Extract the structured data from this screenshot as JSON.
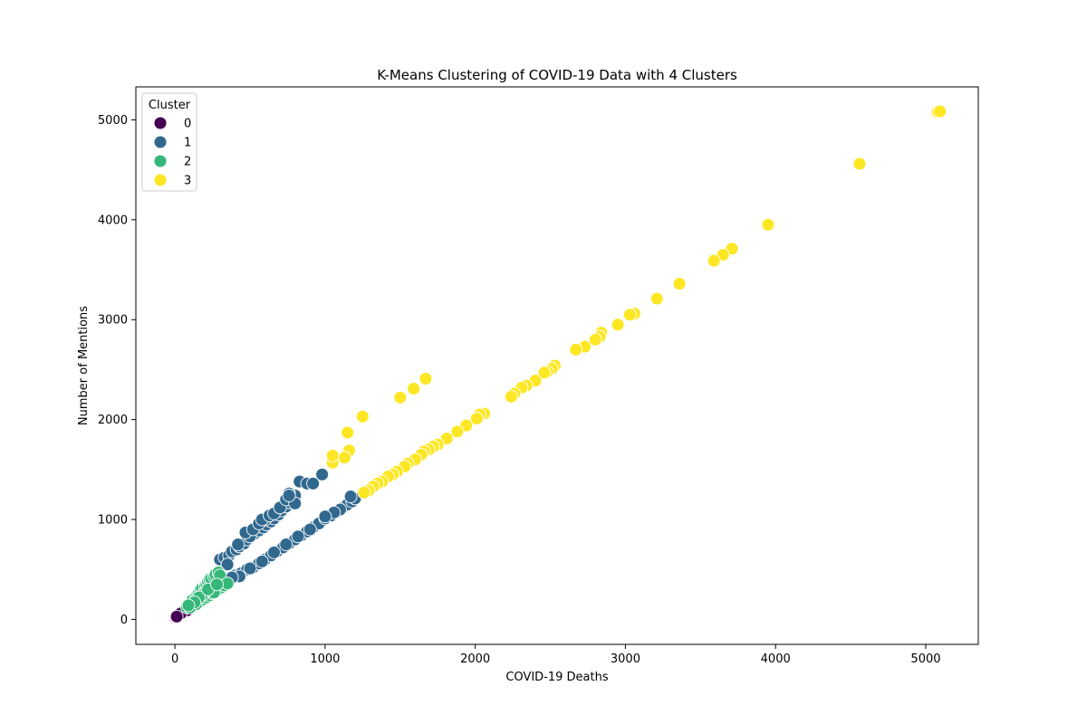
{
  "chart_data": {
    "type": "scatter",
    "title": "K-Means Clustering of COVID-19 Data with 4 Clusters",
    "xlabel": "COVID-19 Deaths",
    "ylabel": "Number of Mentions",
    "xlim": [
      -260,
      5350
    ],
    "ylim": [
      -250,
      5330
    ],
    "xticks": [
      0,
      1000,
      2000,
      3000,
      4000,
      5000
    ],
    "yticks": [
      0,
      1000,
      2000,
      3000,
      4000,
      5000
    ],
    "grid": false,
    "legend": {
      "title": "Cluster",
      "placement": "top-left"
    },
    "marker_edge_color": "#ffffff",
    "series": [
      {
        "name": "0",
        "color": "#440154",
        "points": [
          [
            0,
            10
          ],
          [
            5,
            15
          ],
          [
            10,
            20
          ],
          [
            15,
            25
          ],
          [
            20,
            30
          ],
          [
            25,
            35
          ],
          [
            30,
            40
          ],
          [
            35,
            45
          ],
          [
            40,
            50
          ],
          [
            45,
            55
          ],
          [
            50,
            60
          ],
          [
            55,
            65
          ],
          [
            60,
            70
          ],
          [
            65,
            75
          ],
          [
            70,
            80
          ],
          [
            75,
            85
          ],
          [
            80,
            90
          ],
          [
            20,
            40
          ],
          [
            30,
            55
          ],
          [
            40,
            60
          ],
          [
            12,
            28
          ]
        ]
      },
      {
        "name": "1",
        "color": "#31688e",
        "points": [
          [
            300,
            600
          ],
          [
            330,
            620
          ],
          [
            360,
            640
          ],
          [
            380,
            680
          ],
          [
            410,
            700
          ],
          [
            430,
            730
          ],
          [
            460,
            760
          ],
          [
            480,
            800
          ],
          [
            510,
            840
          ],
          [
            530,
            860
          ],
          [
            560,
            890
          ],
          [
            590,
            920
          ],
          [
            610,
            950
          ],
          [
            640,
            980
          ],
          [
            660,
            1010
          ],
          [
            690,
            1050
          ],
          [
            710,
            1090
          ],
          [
            740,
            1130
          ],
          [
            760,
            1170
          ],
          [
            780,
            1210
          ],
          [
            800,
            1240
          ],
          [
            760,
            1260
          ],
          [
            830,
            1380
          ],
          [
            880,
            1360
          ],
          [
            920,
            1360
          ],
          [
            980,
            1450
          ],
          [
            600,
            1000
          ],
          [
            500,
            830
          ],
          [
            470,
            870
          ],
          [
            420,
            750
          ],
          [
            350,
            550
          ],
          [
            520,
            900
          ],
          [
            560,
            960
          ],
          [
            580,
            1000
          ],
          [
            630,
            1040
          ],
          [
            660,
            1060
          ],
          [
            700,
            1120
          ],
          [
            740,
            1200
          ],
          [
            800,
            1160
          ],
          [
            760,
            1240
          ],
          [
            360,
            410
          ],
          [
            400,
            440
          ],
          [
            440,
            460
          ],
          [
            480,
            500
          ],
          [
            520,
            520
          ],
          [
            560,
            560
          ],
          [
            600,
            600
          ],
          [
            640,
            640
          ],
          [
            680,
            680
          ],
          [
            720,
            720
          ],
          [
            760,
            760
          ],
          [
            800,
            800
          ],
          [
            840,
            840
          ],
          [
            880,
            880
          ],
          [
            920,
            920
          ],
          [
            960,
            960
          ],
          [
            1000,
            1010
          ],
          [
            1040,
            1040
          ],
          [
            1080,
            1080
          ],
          [
            1120,
            1120
          ],
          [
            1150,
            1150
          ],
          [
            1180,
            1180
          ],
          [
            1200,
            1210
          ],
          [
            1170,
            1230
          ],
          [
            1100,
            1100
          ],
          [
            1060,
            1070
          ],
          [
            1000,
            1030
          ],
          [
            900,
            900
          ],
          [
            820,
            830
          ],
          [
            740,
            750
          ],
          [
            660,
            670
          ],
          [
            580,
            580
          ],
          [
            500,
            510
          ],
          [
            430,
            430
          ],
          [
            380,
            420
          ]
        ]
      },
      {
        "name": "2",
        "color": "#35b779",
        "points": [
          [
            80,
            120
          ],
          [
            100,
            150
          ],
          [
            110,
            180
          ],
          [
            120,
            200
          ],
          [
            140,
            230
          ],
          [
            150,
            250
          ],
          [
            160,
            270
          ],
          [
            170,
            300
          ],
          [
            180,
            310
          ],
          [
            200,
            330
          ],
          [
            210,
            350
          ],
          [
            220,
            380
          ],
          [
            230,
            400
          ],
          [
            240,
            410
          ],
          [
            260,
            430
          ],
          [
            270,
            450
          ],
          [
            290,
            470
          ],
          [
            300,
            440
          ],
          [
            150,
            160
          ],
          [
            170,
            180
          ],
          [
            190,
            200
          ],
          [
            210,
            220
          ],
          [
            230,
            240
          ],
          [
            250,
            260
          ],
          [
            270,
            280
          ],
          [
            290,
            300
          ],
          [
            310,
            320
          ],
          [
            330,
            340
          ],
          [
            350,
            360
          ],
          [
            120,
            130
          ],
          [
            140,
            150
          ],
          [
            100,
            120
          ],
          [
            200,
            270
          ],
          [
            180,
            240
          ],
          [
            160,
            220
          ],
          [
            260,
            270
          ],
          [
            220,
            300
          ],
          [
            130,
            170
          ],
          [
            90,
            140
          ],
          [
            280,
            350
          ]
        ]
      },
      {
        "name": "3",
        "color": "#fde725",
        "points": [
          [
            5080,
            5080
          ],
          [
            5095,
            5085
          ],
          [
            4560,
            4560
          ],
          [
            3950,
            3950
          ],
          [
            3710,
            3710
          ],
          [
            3650,
            3650
          ],
          [
            3590,
            3590
          ],
          [
            3360,
            3360
          ],
          [
            3210,
            3210
          ],
          [
            3060,
            3060
          ],
          [
            3030,
            3050
          ],
          [
            2950,
            2950
          ],
          [
            2840,
            2870
          ],
          [
            2830,
            2830
          ],
          [
            2800,
            2800
          ],
          [
            2730,
            2730
          ],
          [
            2670,
            2700
          ],
          [
            2530,
            2540
          ],
          [
            2510,
            2510
          ],
          [
            2480,
            2480
          ],
          [
            2460,
            2470
          ],
          [
            2400,
            2390
          ],
          [
            2340,
            2340
          ],
          [
            2310,
            2320
          ],
          [
            2260,
            2260
          ],
          [
            2240,
            2230
          ],
          [
            2060,
            2060
          ],
          [
            2030,
            2050
          ],
          [
            2010,
            2010
          ],
          [
            1940,
            1940
          ],
          [
            1880,
            1880
          ],
          [
            1810,
            1810
          ],
          [
            1750,
            1750
          ],
          [
            1720,
            1730
          ],
          [
            1690,
            1700
          ],
          [
            1660,
            1680
          ],
          [
            1640,
            1650
          ],
          [
            1600,
            1600
          ],
          [
            1550,
            1560
          ],
          [
            1530,
            1530
          ],
          [
            1480,
            1480
          ],
          [
            1450,
            1450
          ],
          [
            1420,
            1430
          ],
          [
            1380,
            1380
          ],
          [
            1350,
            1360
          ],
          [
            1320,
            1330
          ],
          [
            1290,
            1290
          ],
          [
            1260,
            1270
          ],
          [
            1670,
            2410
          ],
          [
            1590,
            2310
          ],
          [
            1500,
            2220
          ],
          [
            1250,
            2030
          ],
          [
            1150,
            1870
          ],
          [
            1160,
            1690
          ],
          [
            1130,
            1620
          ],
          [
            1050,
            1570
          ],
          [
            1050,
            1640
          ]
        ]
      }
    ]
  }
}
